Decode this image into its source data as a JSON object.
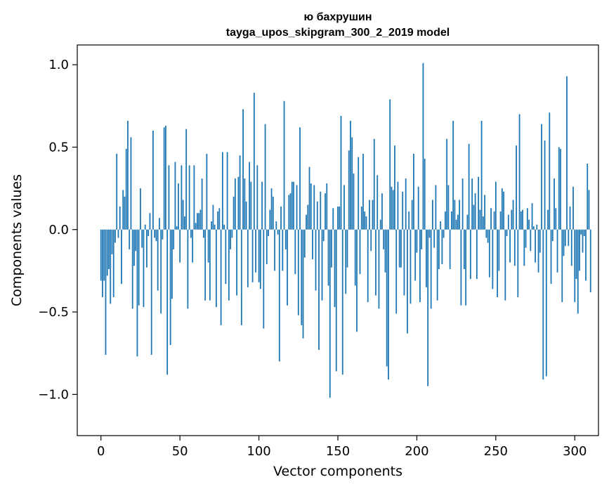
{
  "chart_data": {
    "type": "bar",
    "title_line1": "ю бахрушин",
    "title_line2": "tayga_upos_skipgram_300_2_2019 model",
    "xlabel": "Vector components",
    "ylabel": "Components values",
    "xlim": [
      -15,
      315
    ],
    "ylim": [
      -1.25,
      1.12
    ],
    "xticks": [
      0,
      50,
      100,
      150,
      200,
      250,
      300
    ],
    "xtick_labels": [
      "0",
      "50",
      "100",
      "150",
      "200",
      "250",
      "300"
    ],
    "yticks": [
      -1.0,
      -0.5,
      0.0,
      0.5,
      1.0
    ],
    "ytick_labels": [
      "−1.0",
      "−0.5",
      "0.0",
      "0.5",
      "1.0"
    ],
    "bar_color": "#1f77b4",
    "values": [
      -0.31,
      -0.41,
      -0.31,
      -0.76,
      -0.28,
      -0.24,
      -0.45,
      -0.15,
      -0.41,
      -0.08,
      0.46,
      -0.05,
      0.14,
      -0.33,
      0.24,
      0.2,
      0.49,
      0.66,
      -0.12,
      0.56,
      -0.48,
      -0.22,
      -0.13,
      -0.77,
      -0.46,
      0.25,
      -0.11,
      -0.47,
      0.03,
      -0.23,
      -0.04,
      0.1,
      -0.76,
      0.6,
      -0.05,
      -0.07,
      -0.37,
      0.07,
      -0.51,
      -0.06,
      0.62,
      0.63,
      -0.88,
      0.39,
      -0.7,
      -0.42,
      -0.12,
      0.41,
      0.02,
      0.28,
      -0.2,
      0.39,
      0.18,
      0.08,
      0.61,
      -0.48,
      0.39,
      -0.05,
      -0.2,
      0.39,
      0.04,
      0.1,
      0.1,
      0.12,
      0.31,
      -0.05,
      -0.43,
      0.46,
      -0.2,
      -0.43,
      0.05,
      0.15,
      0.03,
      -0.47,
      0.11,
      0.13,
      -0.58,
      0.47,
      0.03,
      -0.33,
      0.47,
      -0.43,
      -0.12,
      -0.05,
      0.2,
      0.31,
      -0.4,
      0.32,
      0.45,
      -0.58,
      0.73,
      0.31,
      0.17,
      -0.35,
      0.41,
      0.29,
      -0.32,
      0.83,
      -0.26,
      0.39,
      -0.32,
      -0.36,
      0.29,
      -0.6,
      0.64,
      -0.21,
      -0.04,
      0.12,
      0.25,
      0.2,
      -0.25,
      0.05,
      -0.03,
      -0.8,
      0.14,
      -0.25,
      0.78,
      -0.12,
      -0.46,
      0.21,
      0.22,
      0.29,
      0.29,
      -0.27,
      0.27,
      -0.52,
      0.62,
      -0.58,
      -0.66,
      -0.17,
      0.09,
      0.15,
      0.38,
      0.28,
      -0.18,
      0.27,
      -0.37,
      0.17,
      -0.73,
      0.23,
      -0.43,
      -0.07,
      0.22,
      0.28,
      -0.34,
      -1.02,
      -0.23,
      0.13,
      -0.47,
      -0.86,
      0.14,
      0.14,
      0.69,
      -0.88,
      0.27,
      -0.39,
      -0.23,
      0.48,
      0.66,
      0.56,
      0.34,
      -0.34,
      -0.62,
      0.44,
      -0.27,
      0.14,
      0.46,
      0.11,
      0.08,
      -0.44,
      0.18,
      -0.13,
      0.18,
      0.55,
      -0.4,
      0.33,
      -0.48,
      0.06,
      0.22,
      -0.12,
      -0.26,
      -0.83,
      -0.91,
      0.79,
      0.26,
      0.24,
      0.51,
      -0.51,
      0.29,
      -0.23,
      -0.23,
      0.23,
      -0.4,
      0.31,
      -0.63,
      0.11,
      -0.45,
      0.18,
      0.46,
      -0.31,
      -0.14,
      0.26,
      -0.44,
      -0.12,
      1.01,
      0.43,
      -0.35,
      -0.95,
      -0.05,
      -0.48,
      0.18,
      -0.11,
      0.27,
      -0.43,
      -0.24,
      0.05,
      -0.21,
      -0.05,
      0.11,
      0.55,
      0.27,
      -0.24,
      0.11,
      0.66,
      0.18,
      0.06,
      0.09,
      0.18,
      -0.46,
      0.31,
      -0.24,
      -0.46,
      0.09,
      0.52,
      -0.3,
      0.31,
      0.15,
      0.22,
      -0.3,
      0.32,
      0.12,
      0.66,
      0.08,
      0.21,
      -0.05,
      -0.08,
      -0.29,
      0.13,
      -0.36,
      0.11,
      0.29,
      -0.41,
      -0.25,
      0.11,
      0.25,
      0.23,
      -0.43,
      -0.04,
      0.09,
      -0.2,
      0.12,
      0.18,
      -0.22,
      0.51,
      -0.41,
      0.7,
      0.11,
      0.12,
      -0.22,
      -0.11,
      0.13,
      0.06,
      -0.13,
      0.16,
      0.02,
      -0.2,
      0.03,
      -0.26,
      -0.14,
      0.64,
      -0.91,
      0.54,
      -0.89,
      0.12,
      0.71,
      -0.33,
      -0.07,
      0.31,
      0.13,
      -0.26,
      0.5,
      0.49,
      -0.44,
      -0.16,
      -0.1,
      0.93,
      -0.1,
      0.14,
      -0.22,
      0.26,
      -0.44,
      -0.3,
      -0.51,
      -0.25,
      -0.03,
      -0.14,
      -0.04,
      -0.31,
      0.4,
      0.24,
      -0.38
    ]
  }
}
